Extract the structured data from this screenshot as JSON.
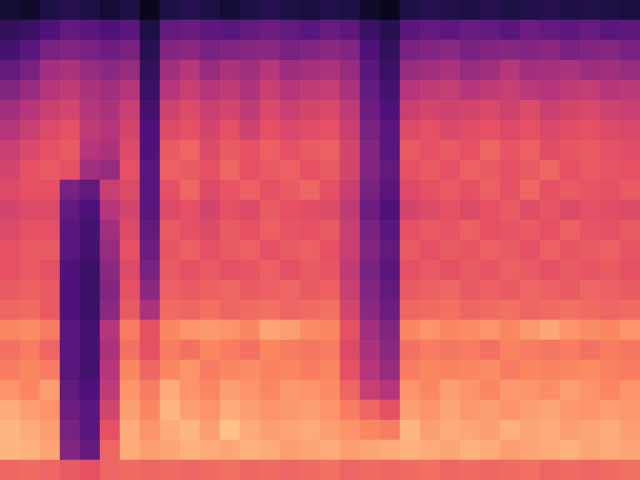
{
  "chart_data": {
    "type": "heatmap",
    "tick_labels": false,
    "zlim": [
      -80,
      0
    ],
    "cells": [
      [
        -72,
        -74,
        -70,
        -68,
        -70,
        -72,
        -70,
        -76,
        -70,
        -68,
        -70,
        -72,
        -70,
        -68,
        -70,
        -71,
        -69,
        -70,
        -74,
        -76,
        -70,
        -68,
        -69,
        -70,
        -68,
        -70,
        -69,
        -68,
        -70,
        -69,
        -70,
        -71
      ],
      [
        -66,
        -64,
        -60,
        -56,
        -58,
        -60,
        -58,
        -70,
        -56,
        -55,
        -57,
        -58,
        -56,
        -54,
        -56,
        -58,
        -55,
        -57,
        -64,
        -68,
        -58,
        -56,
        -57,
        -55,
        -56,
        -58,
        -54,
        -56,
        -57,
        -55,
        -58,
        -57
      ],
      [
        -62,
        -58,
        -52,
        -50,
        -52,
        -54,
        -52,
        -68,
        -50,
        -48,
        -52,
        -50,
        -49,
        -48,
        -52,
        -50,
        -48,
        -50,
        -60,
        -66,
        -52,
        -50,
        -48,
        -52,
        -50,
        -49,
        -50,
        -48,
        -52,
        -50,
        -49,
        -52
      ],
      [
        -56,
        -52,
        -44,
        -42,
        -46,
        -48,
        -46,
        -66,
        -44,
        -40,
        -46,
        -42,
        -44,
        -40,
        -45,
        -43,
        -42,
        -46,
        -58,
        -64,
        -46,
        -44,
        -42,
        -46,
        -44,
        -40,
        -44,
        -43,
        -42,
        -45,
        -44,
        -46
      ],
      [
        -50,
        -46,
        -40,
        -38,
        -42,
        -44,
        -40,
        -64,
        -40,
        -36,
        -40,
        -38,
        -41,
        -36,
        -40,
        -38,
        -37,
        -42,
        -56,
        -62,
        -40,
        -38,
        -37,
        -40,
        -38,
        -36,
        -39,
        -40,
        -38,
        -37,
        -40,
        -39
      ],
      [
        -44,
        -40,
        -36,
        -34,
        -40,
        -42,
        -36,
        -62,
        -35,
        -32,
        -36,
        -34,
        -38,
        -33,
        -36,
        -34,
        -33,
        -38,
        -54,
        -60,
        -36,
        -34,
        -35,
        -34,
        -33,
        -35,
        -32,
        -36,
        -34,
        -33,
        -35,
        -36
      ],
      [
        -40,
        -36,
        -32,
        -30,
        -38,
        -40,
        -34,
        -60,
        -32,
        -30,
        -34,
        -30,
        -35,
        -30,
        -33,
        -31,
        -30,
        -36,
        -52,
        -58,
        -32,
        -30,
        -33,
        -31,
        -30,
        -32,
        -30,
        -33,
        -31,
        -30,
        -32,
        -33
      ],
      [
        -36,
        -33,
        -30,
        -28,
        -40,
        -42,
        -32,
        -60,
        -28,
        -26,
        -32,
        -28,
        -30,
        -27,
        -30,
        -28,
        -27,
        -34,
        -50,
        -58,
        -28,
        -30,
        -28,
        -30,
        -26,
        -29,
        -27,
        -31,
        -29,
        -28,
        -30,
        -31
      ],
      [
        -34,
        -30,
        -28,
        -30,
        -44,
        -46,
        -30,
        -58,
        -27,
        -28,
        -30,
        -26,
        -30,
        -28,
        -27,
        -30,
        -28,
        -34,
        -50,
        -56,
        -30,
        -28,
        -30,
        -27,
        -28,
        -30,
        -28,
        -26,
        -30,
        -28,
        -29,
        -30
      ],
      [
        -32,
        -30,
        -30,
        -52,
        -56,
        -36,
        -32,
        -58,
        -30,
        -26,
        -32,
        -29,
        -27,
        -30,
        -28,
        -26,
        -30,
        -36,
        -52,
        -58,
        -32,
        -30,
        -28,
        -30,
        -27,
        -30,
        -26,
        -30,
        -28,
        -29,
        -30,
        -28
      ],
      [
        -34,
        -32,
        -32,
        -56,
        -60,
        -40,
        -34,
        -58,
        -32,
        -30,
        -34,
        -30,
        -32,
        -28,
        -30,
        -31,
        -32,
        -38,
        -54,
        -60,
        -34,
        -32,
        -30,
        -32,
        -30,
        -28,
        -31,
        -29,
        -32,
        -30,
        -31,
        -32
      ],
      [
        -32,
        -30,
        -30,
        -58,
        -62,
        -44,
        -32,
        -56,
        -28,
        -30,
        -32,
        -28,
        -30,
        -27,
        -29,
        -30,
        -28,
        -36,
        -52,
        -58,
        -30,
        -28,
        -29,
        -27,
        -30,
        -29,
        -28,
        -30,
        -27,
        -29,
        -30,
        -28
      ],
      [
        -30,
        -28,
        -28,
        -58,
        -62,
        -46,
        -30,
        -54,
        -29,
        -27,
        -30,
        -28,
        -27,
        -30,
        -28,
        -27,
        -30,
        -36,
        -50,
        -56,
        -28,
        -30,
        -28,
        -29,
        -27,
        -28,
        -30,
        -27,
        -29,
        -28,
        -27,
        -29
      ],
      [
        -30,
        -28,
        -30,
        -60,
        -64,
        -48,
        -32,
        -52,
        -28,
        -30,
        -28,
        -30,
        -29,
        -27,
        -30,
        -28,
        -29,
        -38,
        -52,
        -58,
        -30,
        -28,
        -30,
        -28,
        -29,
        -27,
        -28,
        -30,
        -28,
        -29,
        -28,
        -30
      ],
      [
        -28,
        -27,
        -28,
        -60,
        -64,
        -50,
        -30,
        -48,
        -27,
        -28,
        -27,
        -26,
        -28,
        -27,
        -26,
        -28,
        -27,
        -36,
        -50,
        -56,
        -28,
        -27,
        -26,
        -28,
        -27,
        -28,
        -26,
        -27,
        -28,
        -26,
        -27,
        -28
      ],
      [
        -26,
        -25,
        -28,
        -60,
        -64,
        -48,
        -28,
        -42,
        -25,
        -26,
        -24,
        -26,
        -25,
        -24,
        -26,
        -25,
        -24,
        -34,
        -48,
        -54,
        -26,
        -25,
        -24,
        -26,
        -25,
        -24,
        -26,
        -25,
        -24,
        -25,
        -26,
        -25
      ],
      [
        -20,
        -19,
        -22,
        -58,
        -62,
        -40,
        -22,
        -30,
        -20,
        -18,
        -17,
        -18,
        -20,
        -15,
        -16,
        -19,
        -20,
        -30,
        -44,
        -50,
        -20,
        -18,
        -20,
        -19,
        -18,
        -20,
        -17,
        -15,
        -18,
        -19,
        -20,
        -18
      ],
      [
        -24,
        -22,
        -26,
        -58,
        -62,
        -42,
        -24,
        -30,
        -22,
        -24,
        -20,
        -22,
        -24,
        -20,
        -22,
        -23,
        -22,
        -32,
        -42,
        -48,
        -24,
        -22,
        -23,
        -22,
        -24,
        -21,
        -22,
        -23,
        -22,
        -24,
        -22,
        -23
      ],
      [
        -22,
        -20,
        -22,
        -58,
        -62,
        -40,
        -20,
        -26,
        -20,
        -18,
        -22,
        -20,
        -19,
        -21,
        -20,
        -22,
        -20,
        -30,
        -40,
        -46,
        -22,
        -20,
        -21,
        -20,
        -19,
        -22,
        -20,
        -21,
        -20,
        -19,
        -21,
        -22
      ],
      [
        -18,
        -20,
        -16,
        -56,
        -60,
        -38,
        -18,
        -22,
        -14,
        -18,
        -20,
        -16,
        -18,
        -20,
        -17,
        -18,
        -19,
        -26,
        -36,
        -40,
        -18,
        -20,
        -16,
        -18,
        -20,
        -17,
        -18,
        -19,
        -16,
        -18,
        -20,
        -18
      ],
      [
        -14,
        -16,
        -18,
        -54,
        -58,
        -34,
        -16,
        -20,
        -12,
        -16,
        -18,
        -14,
        -16,
        -18,
        -17,
        -16,
        -18,
        -22,
        -26,
        -30,
        -16,
        -18,
        -15,
        -17,
        -16,
        -18,
        -16,
        -15,
        -17,
        -18,
        -16,
        -17
      ],
      [
        -12,
        -14,
        -16,
        -52,
        -58,
        -30,
        -14,
        -18,
        -14,
        -12,
        -16,
        -10,
        -14,
        -16,
        -15,
        -14,
        -16,
        -18,
        -20,
        -22,
        -12,
        -16,
        -14,
        -15,
        -16,
        -13,
        -15,
        -14,
        -16,
        -15,
        -14,
        -16
      ],
      [
        -12,
        -13,
        -15,
        -50,
        -56,
        -26,
        -14,
        -16,
        -15,
        -13,
        -14,
        -15,
        -13,
        -14,
        -16,
        -15,
        -14,
        -16,
        -15,
        -14,
        -13,
        -14,
        -15,
        -13,
        -14,
        -16,
        -15,
        -14,
        -13,
        -15,
        -14,
        -15
      ],
      [
        -26,
        -25,
        -26,
        -28,
        -30,
        -26,
        -25,
        -26,
        -25,
        -26,
        -25,
        -24,
        -26,
        -25,
        -26,
        -25,
        -24,
        -26,
        -25,
        -26,
        -25,
        -24,
        -26,
        -25,
        -26,
        -25,
        -24,
        -26,
        -25,
        -26,
        -25,
        -24
      ]
    ]
  }
}
